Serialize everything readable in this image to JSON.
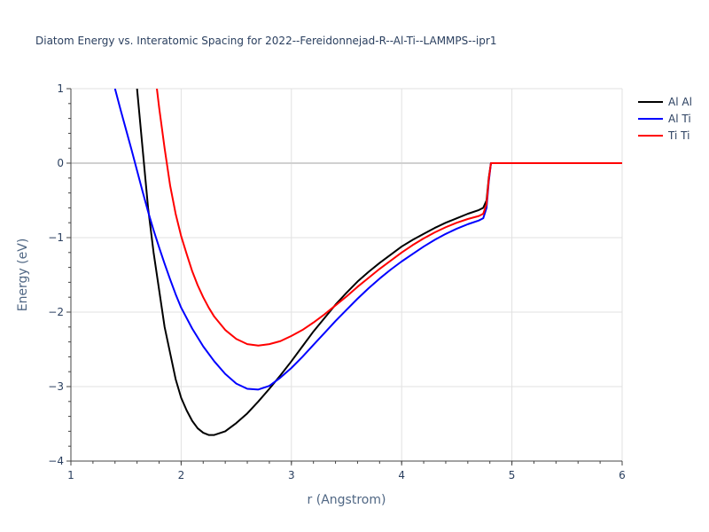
{
  "chart_data": {
    "type": "line",
    "title": "Diatom Energy vs. Interatomic Spacing for 2022--Fereidonnejad-R--Al-Ti--LAMMPS--ipr1",
    "xlabel": "r (Angstrom)",
    "ylabel": "Energy (eV)",
    "xlim": [
      1,
      6
    ],
    "ylim": [
      -4,
      1
    ],
    "x_ticks": [
      "1",
      "2",
      "3",
      "4",
      "5",
      "6"
    ],
    "y_ticks": [
      "1",
      "0",
      "−1",
      "−2",
      "−3",
      "−4"
    ],
    "grid": true,
    "legend_position": "top-right",
    "series": [
      {
        "name": "Al Al",
        "color": "#000000",
        "points": [
          [
            1.6,
            1.0
          ],
          [
            1.65,
            0.2
          ],
          [
            1.7,
            -0.6
          ],
          [
            1.75,
            -1.2
          ],
          [
            1.8,
            -1.7
          ],
          [
            1.85,
            -2.2
          ],
          [
            1.9,
            -2.55
          ],
          [
            1.95,
            -2.9
          ],
          [
            2.0,
            -3.15
          ],
          [
            2.05,
            -3.32
          ],
          [
            2.1,
            -3.46
          ],
          [
            2.15,
            -3.56
          ],
          [
            2.2,
            -3.62
          ],
          [
            2.25,
            -3.65
          ],
          [
            2.3,
            -3.65
          ],
          [
            2.4,
            -3.6
          ],
          [
            2.5,
            -3.49
          ],
          [
            2.6,
            -3.36
          ],
          [
            2.7,
            -3.2
          ],
          [
            2.8,
            -3.03
          ],
          [
            2.9,
            -2.85
          ],
          [
            3.0,
            -2.66
          ],
          [
            3.1,
            -2.46
          ],
          [
            3.2,
            -2.26
          ],
          [
            3.3,
            -2.08
          ],
          [
            3.4,
            -1.9
          ],
          [
            3.5,
            -1.74
          ],
          [
            3.6,
            -1.59
          ],
          [
            3.7,
            -1.46
          ],
          [
            3.8,
            -1.34
          ],
          [
            3.9,
            -1.23
          ],
          [
            4.0,
            -1.12
          ],
          [
            4.1,
            -1.03
          ],
          [
            4.2,
            -0.95
          ],
          [
            4.3,
            -0.87
          ],
          [
            4.4,
            -0.8
          ],
          [
            4.5,
            -0.74
          ],
          [
            4.6,
            -0.68
          ],
          [
            4.7,
            -0.63
          ],
          [
            4.74,
            -0.6
          ],
          [
            4.77,
            -0.5
          ],
          [
            4.79,
            -0.2
          ],
          [
            4.81,
            0.0
          ],
          [
            6.0,
            0.0
          ]
        ]
      },
      {
        "name": "Al Ti",
        "color": "#0000ff",
        "points": [
          [
            1.4,
            1.0
          ],
          [
            1.45,
            0.72
          ],
          [
            1.5,
            0.45
          ],
          [
            1.55,
            0.18
          ],
          [
            1.6,
            -0.1
          ],
          [
            1.65,
            -0.38
          ],
          [
            1.7,
            -0.65
          ],
          [
            1.75,
            -0.9
          ],
          [
            1.8,
            -1.13
          ],
          [
            1.85,
            -1.35
          ],
          [
            1.9,
            -1.56
          ],
          [
            1.95,
            -1.76
          ],
          [
            2.0,
            -1.94
          ],
          [
            2.1,
            -2.22
          ],
          [
            2.2,
            -2.46
          ],
          [
            2.3,
            -2.66
          ],
          [
            2.4,
            -2.83
          ],
          [
            2.5,
            -2.96
          ],
          [
            2.6,
            -3.03
          ],
          [
            2.7,
            -3.04
          ],
          [
            2.8,
            -2.99
          ],
          [
            2.9,
            -2.88
          ],
          [
            3.0,
            -2.75
          ],
          [
            3.1,
            -2.6
          ],
          [
            3.2,
            -2.44
          ],
          [
            3.3,
            -2.28
          ],
          [
            3.4,
            -2.12
          ],
          [
            3.5,
            -1.97
          ],
          [
            3.6,
            -1.82
          ],
          [
            3.7,
            -1.68
          ],
          [
            3.8,
            -1.55
          ],
          [
            3.9,
            -1.43
          ],
          [
            4.0,
            -1.32
          ],
          [
            4.1,
            -1.22
          ],
          [
            4.2,
            -1.12
          ],
          [
            4.3,
            -1.03
          ],
          [
            4.4,
            -0.95
          ],
          [
            4.5,
            -0.88
          ],
          [
            4.6,
            -0.82
          ],
          [
            4.7,
            -0.77
          ],
          [
            4.74,
            -0.74
          ],
          [
            4.77,
            -0.6
          ],
          [
            4.79,
            -0.25
          ],
          [
            4.81,
            0.0
          ],
          [
            6.0,
            0.0
          ]
        ]
      },
      {
        "name": "Ti Ti",
        "color": "#ff0000",
        "points": [
          [
            1.78,
            1.0
          ],
          [
            1.8,
            0.75
          ],
          [
            1.85,
            0.2
          ],
          [
            1.9,
            -0.3
          ],
          [
            1.95,
            -0.68
          ],
          [
            2.0,
            -0.98
          ],
          [
            2.05,
            -1.22
          ],
          [
            2.1,
            -1.45
          ],
          [
            2.15,
            -1.64
          ],
          [
            2.2,
            -1.8
          ],
          [
            2.25,
            -1.94
          ],
          [
            2.3,
            -2.06
          ],
          [
            2.4,
            -2.24
          ],
          [
            2.5,
            -2.36
          ],
          [
            2.6,
            -2.43
          ],
          [
            2.7,
            -2.45
          ],
          [
            2.8,
            -2.43
          ],
          [
            2.9,
            -2.39
          ],
          [
            3.0,
            -2.32
          ],
          [
            3.1,
            -2.24
          ],
          [
            3.2,
            -2.14
          ],
          [
            3.3,
            -2.03
          ],
          [
            3.4,
            -1.91
          ],
          [
            3.5,
            -1.79
          ],
          [
            3.6,
            -1.66
          ],
          [
            3.7,
            -1.54
          ],
          [
            3.8,
            -1.42
          ],
          [
            3.9,
            -1.31
          ],
          [
            4.0,
            -1.2
          ],
          [
            4.1,
            -1.1
          ],
          [
            4.2,
            -1.01
          ],
          [
            4.3,
            -0.93
          ],
          [
            4.4,
            -0.86
          ],
          [
            4.5,
            -0.8
          ],
          [
            4.6,
            -0.75
          ],
          [
            4.7,
            -0.71
          ],
          [
            4.74,
            -0.68
          ],
          [
            4.77,
            -0.55
          ],
          [
            4.79,
            -0.22
          ],
          [
            4.81,
            0.0
          ],
          [
            6.0,
            0.0
          ]
        ]
      }
    ]
  }
}
